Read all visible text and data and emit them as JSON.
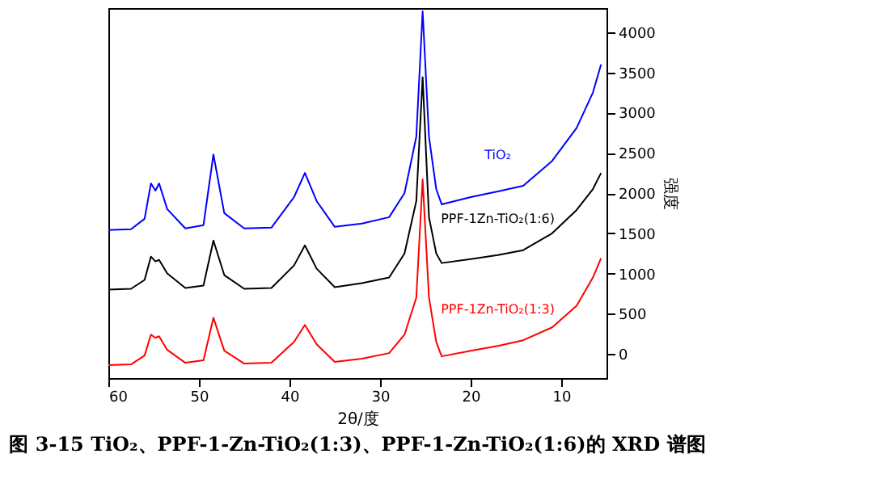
{
  "chart_data": {
    "type": "line",
    "xlabel": "2θ/度",
    "ylabel": "强度",
    "annotations": [
      "图 3-15 TiO₂、PPF-1-Zn-TiO₂(1:3)、PPF-1-Zn-TiO₂(1:6)的 XRD 谱图"
    ],
    "x": [
      60,
      57.5,
      56,
      55.3,
      54.8,
      54.4,
      53.5,
      51.5,
      49.5,
      48.4,
      47.2,
      45,
      42,
      39.5,
      38.3,
      37,
      35,
      32,
      29,
      27.3,
      26,
      25.3,
      24.6,
      23.8,
      23.2,
      20,
      17,
      14.2,
      11,
      8.3,
      6.5,
      5.6
    ],
    "series": [
      {
        "name": "PPF-1Zn-TiO₂(1:3)",
        "color": "#ff0000",
        "values": [
          -140,
          -130,
          -20,
          240,
          200,
          220,
          50,
          -110,
          -80,
          450,
          40,
          -120,
          -110,
          150,
          360,
          120,
          -100,
          -60,
          10,
          240,
          700,
          2170,
          700,
          150,
          -30,
          40,
          100,
          170,
          330,
          600,
          950,
          1190
        ]
      },
      {
        "name": "PPF-1Zn-TiO₂(1:6)",
        "color": "#000000",
        "values": [
          800,
          810,
          920,
          1210,
          1150,
          1170,
          1000,
          820,
          850,
          1410,
          980,
          810,
          820,
          1100,
          1350,
          1060,
          830,
          880,
          950,
          1250,
          1900,
          3440,
          1700,
          1250,
          1130,
          1180,
          1230,
          1290,
          1500,
          1790,
          2050,
          2250
        ]
      },
      {
        "name": "TiO₂",
        "color": "#0000ff",
        "values": [
          1540,
          1550,
          1680,
          2120,
          2030,
          2120,
          1800,
          1560,
          1600,
          2480,
          1750,
          1560,
          1570,
          1950,
          2250,
          1900,
          1580,
          1620,
          1700,
          2000,
          2700,
          4260,
          2700,
          2050,
          1860,
          1950,
          2020,
          2090,
          2400,
          2810,
          3250,
          3600
        ]
      }
    ],
    "xlim": [
      60,
      5
    ],
    "xticks": [
      60,
      50,
      40,
      30,
      20,
      10
    ],
    "ylim": [
      -300,
      4300
    ],
    "yticks": [
      0,
      500,
      1000,
      1500,
      2000,
      2500,
      3000,
      3500,
      4000
    ],
    "grid": false,
    "legend": false
  }
}
